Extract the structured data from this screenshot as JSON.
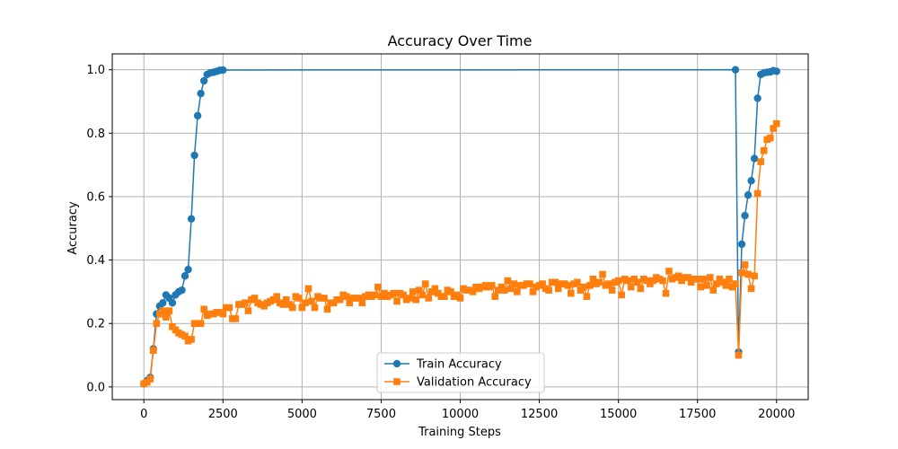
{
  "chart_data": {
    "type": "line",
    "title": "Accuracy Over Time",
    "xlabel": "Training Steps",
    "ylabel": "Accuracy",
    "xlim": [
      -1000,
      21000
    ],
    "ylim": [
      -0.04,
      1.05
    ],
    "xticks": [
      0,
      2500,
      5000,
      7500,
      10000,
      12500,
      15000,
      17500,
      20000
    ],
    "xtick_labels": [
      "0",
      "2500",
      "5000",
      "7500",
      "10000",
      "12500",
      "15000",
      "17500",
      "20000"
    ],
    "yticks": [
      0.0,
      0.2,
      0.4,
      0.6,
      0.8,
      1.0
    ],
    "ytick_labels": [
      "0.0",
      "0.2",
      "0.4",
      "0.6",
      "0.8",
      "1.0"
    ],
    "grid": true,
    "legend_position": "bottom-center",
    "series": [
      {
        "name": "Train Accuracy",
        "color": "#1f77b4",
        "marker": "circle",
        "points": [
          [
            0,
            0.01
          ],
          [
            100,
            0.02
          ],
          [
            200,
            0.03
          ],
          [
            300,
            0.12
          ],
          [
            400,
            0.23
          ],
          [
            500,
            0.255
          ],
          [
            600,
            0.265
          ],
          [
            700,
            0.29
          ],
          [
            800,
            0.28
          ],
          [
            900,
            0.265
          ],
          [
            1000,
            0.29
          ],
          [
            1100,
            0.3
          ],
          [
            1200,
            0.305
          ],
          [
            1300,
            0.35
          ],
          [
            1400,
            0.37
          ],
          [
            1500,
            0.53
          ],
          [
            1600,
            0.73
          ],
          [
            1700,
            0.855
          ],
          [
            1800,
            0.925
          ],
          [
            1900,
            0.965
          ],
          [
            2000,
            0.985
          ],
          [
            2100,
            0.99
          ],
          [
            2200,
            0.992
          ],
          [
            2300,
            0.995
          ],
          [
            2400,
            0.998
          ],
          [
            2500,
            0.999
          ],
          [
            18700,
            1.0
          ],
          [
            18800,
            0.11
          ],
          [
            18900,
            0.45
          ],
          [
            19000,
            0.54
          ],
          [
            19100,
            0.605
          ],
          [
            19200,
            0.65
          ],
          [
            19300,
            0.72
          ],
          [
            19400,
            0.91
          ],
          [
            19500,
            0.985
          ],
          [
            19600,
            0.99
          ],
          [
            19700,
            0.992
          ],
          [
            19800,
            0.993
          ],
          [
            19900,
            0.997
          ],
          [
            20000,
            0.995
          ]
        ]
      },
      {
        "name": "Validation Accuracy",
        "color": "#ff7f0e",
        "marker": "square",
        "points": [
          [
            0,
            0.01
          ],
          [
            100,
            0.015
          ],
          [
            200,
            0.025
          ],
          [
            300,
            0.115
          ],
          [
            400,
            0.2
          ],
          [
            500,
            0.23
          ],
          [
            600,
            0.24
          ],
          [
            700,
            0.22
          ],
          [
            800,
            0.24
          ],
          [
            900,
            0.19
          ],
          [
            1000,
            0.18
          ],
          [
            1100,
            0.17
          ],
          [
            1200,
            0.165
          ],
          [
            1300,
            0.16
          ],
          [
            1400,
            0.145
          ],
          [
            1500,
            0.15
          ],
          [
            1600,
            0.2
          ],
          [
            1700,
            0.2
          ],
          [
            1800,
            0.2
          ],
          [
            1900,
            0.245
          ],
          [
            2000,
            0.225
          ],
          [
            2100,
            0.23
          ],
          [
            2200,
            0.23
          ],
          [
            2300,
            0.235
          ],
          [
            2400,
            0.235
          ],
          [
            2500,
            0.23
          ],
          [
            2600,
            0.25
          ],
          [
            2700,
            0.25
          ],
          [
            2800,
            0.215
          ],
          [
            2900,
            0.215
          ],
          [
            3000,
            0.26
          ],
          [
            3100,
            0.26
          ],
          [
            3200,
            0.265
          ],
          [
            3300,
            0.24
          ],
          [
            3400,
            0.275
          ],
          [
            3500,
            0.28
          ],
          [
            3600,
            0.265
          ],
          [
            3700,
            0.26
          ],
          [
            3800,
            0.255
          ],
          [
            3900,
            0.265
          ],
          [
            4000,
            0.27
          ],
          [
            4100,
            0.275
          ],
          [
            4200,
            0.285
          ],
          [
            4300,
            0.265
          ],
          [
            4400,
            0.26
          ],
          [
            4500,
            0.275
          ],
          [
            4600,
            0.26
          ],
          [
            4700,
            0.25
          ],
          [
            4800,
            0.285
          ],
          [
            4900,
            0.28
          ],
          [
            5000,
            0.25
          ],
          [
            5100,
            0.265
          ],
          [
            5200,
            0.31
          ],
          [
            5300,
            0.27
          ],
          [
            5400,
            0.25
          ],
          [
            5500,
            0.285
          ],
          [
            5600,
            0.28
          ],
          [
            5700,
            0.28
          ],
          [
            5800,
            0.245
          ],
          [
            5900,
            0.265
          ],
          [
            6000,
            0.265
          ],
          [
            6100,
            0.275
          ],
          [
            6200,
            0.275
          ],
          [
            6300,
            0.29
          ],
          [
            6400,
            0.285
          ],
          [
            6500,
            0.265
          ],
          [
            6600,
            0.28
          ],
          [
            6700,
            0.28
          ],
          [
            6800,
            0.28
          ],
          [
            6900,
            0.265
          ],
          [
            7000,
            0.285
          ],
          [
            7100,
            0.29
          ],
          [
            7200,
            0.285
          ],
          [
            7300,
            0.29
          ],
          [
            7400,
            0.315
          ],
          [
            7500,
            0.285
          ],
          [
            7600,
            0.295
          ],
          [
            7700,
            0.285
          ],
          [
            7800,
            0.29
          ],
          [
            7900,
            0.295
          ],
          [
            8000,
            0.27
          ],
          [
            8100,
            0.295
          ],
          [
            8200,
            0.29
          ],
          [
            8300,
            0.275
          ],
          [
            8400,
            0.28
          ],
          [
            8500,
            0.3
          ],
          [
            8600,
            0.275
          ],
          [
            8700,
            0.305
          ],
          [
            8800,
            0.29
          ],
          [
            8900,
            0.325
          ],
          [
            9000,
            0.28
          ],
          [
            9100,
            0.3
          ],
          [
            9200,
            0.31
          ],
          [
            9300,
            0.295
          ],
          [
            9400,
            0.285
          ],
          [
            9500,
            0.285
          ],
          [
            9600,
            0.305
          ],
          [
            9700,
            0.3
          ],
          [
            9800,
            0.285
          ],
          [
            9900,
            0.29
          ],
          [
            10000,
            0.28
          ],
          [
            10100,
            0.31
          ],
          [
            10200,
            0.305
          ],
          [
            10300,
            0.305
          ],
          [
            10400,
            0.3
          ],
          [
            10500,
            0.315
          ],
          [
            10600,
            0.31
          ],
          [
            10700,
            0.315
          ],
          [
            10800,
            0.32
          ],
          [
            10900,
            0.315
          ],
          [
            11000,
            0.32
          ],
          [
            11100,
            0.285
          ],
          [
            11200,
            0.305
          ],
          [
            11300,
            0.315
          ],
          [
            11400,
            0.305
          ],
          [
            11500,
            0.335
          ],
          [
            11600,
            0.31
          ],
          [
            11700,
            0.325
          ],
          [
            11800,
            0.3
          ],
          [
            11900,
            0.32
          ],
          [
            12000,
            0.32
          ],
          [
            12100,
            0.325
          ],
          [
            12200,
            0.325
          ],
          [
            12300,
            0.3
          ],
          [
            12400,
            0.315
          ],
          [
            12500,
            0.32
          ],
          [
            12600,
            0.325
          ],
          [
            12700,
            0.31
          ],
          [
            12800,
            0.305
          ],
          [
            12900,
            0.33
          ],
          [
            13000,
            0.33
          ],
          [
            13100,
            0.31
          ],
          [
            13200,
            0.325
          ],
          [
            13300,
            0.325
          ],
          [
            13400,
            0.32
          ],
          [
            13500,
            0.295
          ],
          [
            13600,
            0.325
          ],
          [
            13700,
            0.33
          ],
          [
            13800,
            0.305
          ],
          [
            13900,
            0.315
          ],
          [
            14000,
            0.285
          ],
          [
            14100,
            0.32
          ],
          [
            14200,
            0.34
          ],
          [
            14300,
            0.325
          ],
          [
            14400,
            0.33
          ],
          [
            14500,
            0.355
          ],
          [
            14600,
            0.32
          ],
          [
            14700,
            0.325
          ],
          [
            14800,
            0.305
          ],
          [
            14900,
            0.33
          ],
          [
            15000,
            0.335
          ],
          [
            15100,
            0.29
          ],
          [
            15200,
            0.34
          ],
          [
            15300,
            0.335
          ],
          [
            15400,
            0.315
          ],
          [
            15500,
            0.34
          ],
          [
            15600,
            0.33
          ],
          [
            15700,
            0.31
          ],
          [
            15800,
            0.34
          ],
          [
            15900,
            0.335
          ],
          [
            16000,
            0.325
          ],
          [
            16100,
            0.335
          ],
          [
            16200,
            0.345
          ],
          [
            16300,
            0.34
          ],
          [
            16400,
            0.335
          ],
          [
            16500,
            0.295
          ],
          [
            16600,
            0.365
          ],
          [
            16700,
            0.34
          ],
          [
            16800,
            0.345
          ],
          [
            16900,
            0.35
          ],
          [
            17000,
            0.335
          ],
          [
            17100,
            0.345
          ],
          [
            17200,
            0.345
          ],
          [
            17300,
            0.33
          ],
          [
            17400,
            0.34
          ],
          [
            17500,
            0.34
          ],
          [
            17600,
            0.315
          ],
          [
            17700,
            0.34
          ],
          [
            17800,
            0.32
          ],
          [
            17900,
            0.345
          ],
          [
            18000,
            0.305
          ],
          [
            18100,
            0.325
          ],
          [
            18200,
            0.34
          ],
          [
            18300,
            0.33
          ],
          [
            18400,
            0.32
          ],
          [
            18500,
            0.34
          ],
          [
            18600,
            0.315
          ],
          [
            18700,
            0.325
          ],
          [
            18800,
            0.1
          ],
          [
            18900,
            0.36
          ],
          [
            19000,
            0.385
          ],
          [
            19100,
            0.355
          ],
          [
            19200,
            0.31
          ],
          [
            19300,
            0.35
          ],
          [
            19400,
            0.61
          ],
          [
            19500,
            0.71
          ],
          [
            19600,
            0.745
          ],
          [
            19700,
            0.78
          ],
          [
            19800,
            0.785
          ],
          [
            19900,
            0.815
          ],
          [
            20000,
            0.83
          ]
        ]
      }
    ]
  }
}
